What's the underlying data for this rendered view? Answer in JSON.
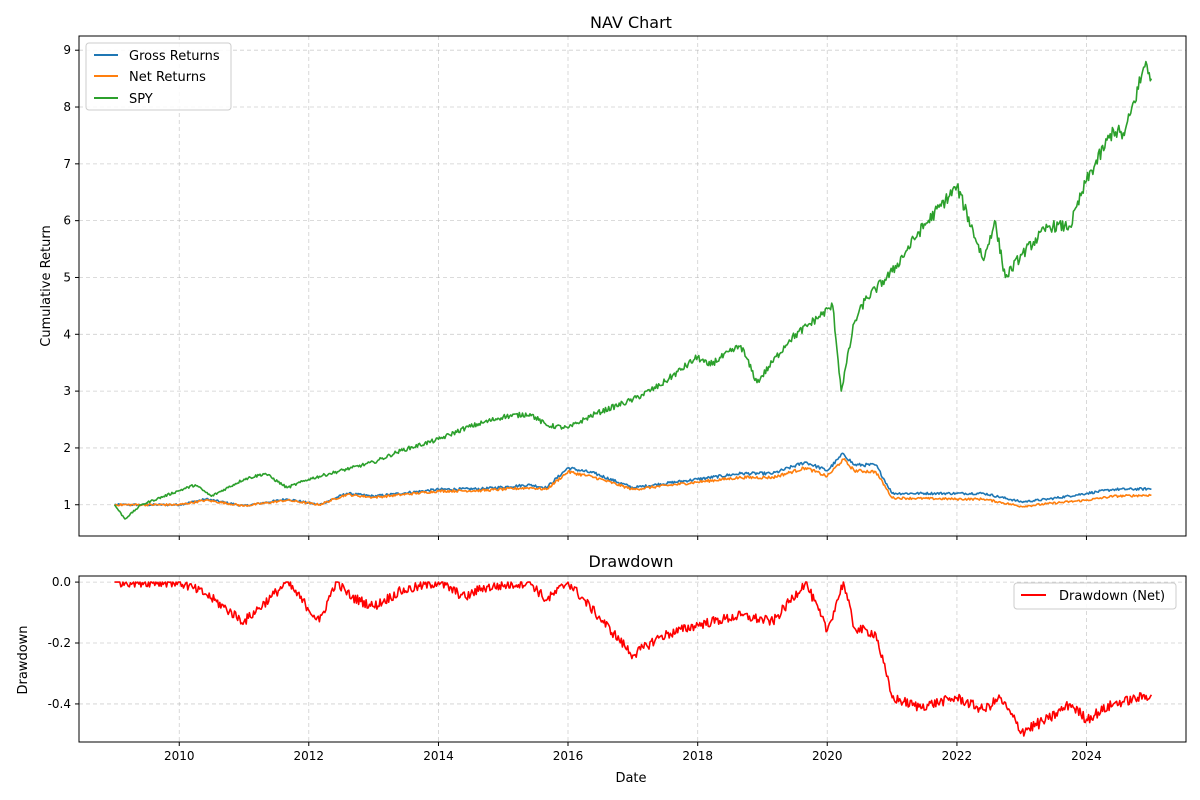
{
  "chart_data": [
    {
      "id": "nav",
      "type": "line",
      "title": "NAV Chart",
      "xlabel": "",
      "ylabel": "Cumulative Return",
      "xlim": [
        "2008-06-15",
        "2025-07-15"
      ],
      "ylim": [
        0.45,
        9.25
      ],
      "x_ticks": [
        "2010",
        "2012",
        "2014",
        "2016",
        "2018",
        "2020",
        "2022",
        "2024"
      ],
      "y_ticks": [
        "1",
        "2",
        "3",
        "4",
        "5",
        "6",
        "7",
        "8",
        "9"
      ],
      "grid": true,
      "legend": "upper-left",
      "series": [
        {
          "name": "Gross Returns",
          "color": "#1f77b4",
          "points": [
            [
              "2009-01-01",
              1.0
            ],
            [
              "2010-01-01",
              1.0
            ],
            [
              "2010-06-01",
              1.1
            ],
            [
              "2011-01-01",
              0.98
            ],
            [
              "2011-09-01",
              1.1
            ],
            [
              "2012-03-01",
              1.0
            ],
            [
              "2012-08-01",
              1.2
            ],
            [
              "2013-01-01",
              1.15
            ],
            [
              "2014-01-01",
              1.27
            ],
            [
              "2014-09-01",
              1.28
            ],
            [
              "2015-06-01",
              1.35
            ],
            [
              "2015-09-01",
              1.3
            ],
            [
              "2016-01-01",
              1.65
            ],
            [
              "2016-06-01",
              1.55
            ],
            [
              "2017-01-01",
              1.3
            ],
            [
              "2018-01-01",
              1.45
            ],
            [
              "2018-09-01",
              1.55
            ],
            [
              "2019-03-01",
              1.55
            ],
            [
              "2019-09-01",
              1.75
            ],
            [
              "2020-01-01",
              1.6
            ],
            [
              "2020-04-01",
              1.9
            ],
            [
              "2020-06-01",
              1.7
            ],
            [
              "2020-10-01",
              1.7
            ],
            [
              "2021-01-01",
              1.2
            ],
            [
              "2022-01-01",
              1.2
            ],
            [
              "2022-06-01",
              1.2
            ],
            [
              "2023-01-01",
              1.05
            ],
            [
              "2023-06-01",
              1.1
            ],
            [
              "2024-01-01",
              1.2
            ],
            [
              "2024-06-01",
              1.27
            ],
            [
              "2025-01-01",
              1.28
            ]
          ]
        },
        {
          "name": "Net Returns",
          "color": "#ff7f0e",
          "points": [
            [
              "2009-01-01",
              1.0
            ],
            [
              "2010-01-01",
              1.0
            ],
            [
              "2010-06-01",
              1.08
            ],
            [
              "2011-01-01",
              0.98
            ],
            [
              "2011-09-01",
              1.08
            ],
            [
              "2012-03-01",
              1.0
            ],
            [
              "2012-08-01",
              1.18
            ],
            [
              "2013-01-01",
              1.13
            ],
            [
              "2014-01-01",
              1.24
            ],
            [
              "2014-09-01",
              1.25
            ],
            [
              "2015-06-01",
              1.3
            ],
            [
              "2015-09-01",
              1.27
            ],
            [
              "2016-01-01",
              1.58
            ],
            [
              "2016-06-01",
              1.48
            ],
            [
              "2017-01-01",
              1.27
            ],
            [
              "2018-01-01",
              1.4
            ],
            [
              "2018-09-01",
              1.48
            ],
            [
              "2019-03-01",
              1.48
            ],
            [
              "2019-09-01",
              1.65
            ],
            [
              "2020-01-01",
              1.5
            ],
            [
              "2020-04-01",
              1.8
            ],
            [
              "2020-06-01",
              1.6
            ],
            [
              "2020-10-01",
              1.58
            ],
            [
              "2021-01-01",
              1.12
            ],
            [
              "2022-01-01",
              1.1
            ],
            [
              "2022-06-01",
              1.1
            ],
            [
              "2023-01-01",
              0.97
            ],
            [
              "2023-06-01",
              1.02
            ],
            [
              "2024-01-01",
              1.08
            ],
            [
              "2024-06-01",
              1.15
            ],
            [
              "2025-01-01",
              1.17
            ]
          ]
        },
        {
          "name": "SPY",
          "color": "#2ca02c",
          "points": [
            [
              "2009-01-01",
              1.0
            ],
            [
              "2009-03-01",
              0.75
            ],
            [
              "2009-06-01",
              1.0
            ],
            [
              "2010-01-01",
              1.25
            ],
            [
              "2010-04-01",
              1.35
            ],
            [
              "2010-07-01",
              1.15
            ],
            [
              "2011-01-01",
              1.45
            ],
            [
              "2011-05-01",
              1.55
            ],
            [
              "2011-09-01",
              1.3
            ],
            [
              "2012-01-01",
              1.45
            ],
            [
              "2012-05-01",
              1.55
            ],
            [
              "2012-09-01",
              1.65
            ],
            [
              "2013-01-01",
              1.75
            ],
            [
              "2013-06-01",
              1.95
            ],
            [
              "2014-01-01",
              2.15
            ],
            [
              "2014-06-01",
              2.35
            ],
            [
              "2015-01-01",
              2.55
            ],
            [
              "2015-06-01",
              2.6
            ],
            [
              "2015-09-01",
              2.4
            ],
            [
              "2016-01-01",
              2.35
            ],
            [
              "2016-06-01",
              2.6
            ],
            [
              "2017-01-01",
              2.85
            ],
            [
              "2017-06-01",
              3.1
            ],
            [
              "2018-01-01",
              3.6
            ],
            [
              "2018-03-01",
              3.45
            ],
            [
              "2018-09-01",
              3.8
            ],
            [
              "2018-12-01",
              3.15
            ],
            [
              "2019-06-01",
              3.9
            ],
            [
              "2020-02-01",
              4.5
            ],
            [
              "2020-03-20",
              3.0
            ],
            [
              "2020-06-01",
              4.2
            ],
            [
              "2020-08-01",
              4.6
            ],
            [
              "2021-01-01",
              5.1
            ],
            [
              "2021-06-01",
              5.8
            ],
            [
              "2022-01-01",
              6.6
            ],
            [
              "2022-06-01",
              5.3
            ],
            [
              "2022-08-01",
              6.0
            ],
            [
              "2022-10-01",
              5.0
            ],
            [
              "2023-01-01",
              5.4
            ],
            [
              "2023-06-01",
              5.9
            ],
            [
              "2023-10-01",
              5.9
            ],
            [
              "2024-01-01",
              6.7
            ],
            [
              "2024-06-01",
              7.6
            ],
            [
              "2024-08-01",
              7.5
            ],
            [
              "2024-12-01",
              8.8
            ],
            [
              "2025-01-01",
              8.5
            ]
          ]
        }
      ]
    },
    {
      "id": "drawdown",
      "type": "line",
      "title": "Drawdown",
      "xlabel": "Date",
      "ylabel": "Drawdown",
      "xlim": [
        "2008-06-15",
        "2025-07-15"
      ],
      "ylim": [
        -0.525,
        0.02
      ],
      "x_ticks": [
        "2010",
        "2012",
        "2014",
        "2016",
        "2018",
        "2020",
        "2022",
        "2024"
      ],
      "y_ticks": [
        "0.0",
        "-0.2",
        "-0.4"
      ],
      "grid": true,
      "legend": "upper-right",
      "series": [
        {
          "name": "Drawdown (Net)",
          "color": "#ff0000",
          "points": [
            [
              "2009-01-01",
              0.0
            ],
            [
              "2010-01-01",
              0.0
            ],
            [
              "2010-06-01",
              -0.04
            ],
            [
              "2011-01-01",
              -0.13
            ],
            [
              "2011-06-01",
              -0.05
            ],
            [
              "2011-09-01",
              0.0
            ],
            [
              "2012-03-01",
              -0.13
            ],
            [
              "2012-06-01",
              0.0
            ],
            [
              "2012-09-01",
              -0.05
            ],
            [
              "2013-01-01",
              -0.08
            ],
            [
              "2013-06-01",
              -0.03
            ],
            [
              "2014-01-01",
              0.0
            ],
            [
              "2014-06-01",
              -0.05
            ],
            [
              "2014-09-01",
              -0.02
            ],
            [
              "2015-06-01",
              0.0
            ],
            [
              "2015-09-01",
              -0.06
            ],
            [
              "2016-01-01",
              0.0
            ],
            [
              "2016-06-01",
              -0.1
            ],
            [
              "2017-01-01",
              -0.24
            ],
            [
              "2017-06-01",
              -0.18
            ],
            [
              "2018-01-01",
              -0.14
            ],
            [
              "2018-09-01",
              -0.11
            ],
            [
              "2019-03-01",
              -0.13
            ],
            [
              "2019-09-01",
              0.0
            ],
            [
              "2020-01-01",
              -0.16
            ],
            [
              "2020-04-01",
              0.0
            ],
            [
              "2020-06-01",
              -0.15
            ],
            [
              "2020-10-01",
              -0.17
            ],
            [
              "2021-01-01",
              -0.38
            ],
            [
              "2021-06-01",
              -0.41
            ],
            [
              "2022-01-01",
              -0.38
            ],
            [
              "2022-06-01",
              -0.42
            ],
            [
              "2022-09-01",
              -0.38
            ],
            [
              "2023-01-01",
              -0.49
            ],
            [
              "2023-06-01",
              -0.45
            ],
            [
              "2023-10-01",
              -0.4
            ],
            [
              "2024-01-01",
              -0.45
            ],
            [
              "2024-06-01",
              -0.4
            ],
            [
              "2025-01-01",
              -0.37
            ]
          ]
        }
      ]
    }
  ]
}
